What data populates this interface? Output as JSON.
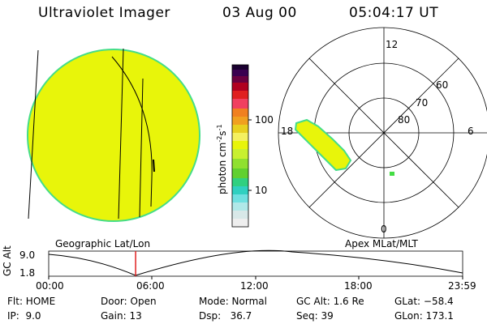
{
  "header": {
    "instrument": "Ultraviolet Imager",
    "date": "03 Aug 00",
    "time": "05:04:17 UT"
  },
  "colorbar": {
    "label": "photon cm",
    "label_sup1": "-2",
    "label_s": "s",
    "label_sup2": "-1",
    "ticks": [
      "100",
      "10"
    ]
  },
  "polar_plot": {
    "title": "Apex MLat/MLT",
    "mlt_labels": [
      "12",
      "18",
      "6",
      "0"
    ],
    "mlat_labels": [
      "60",
      "70",
      "80"
    ]
  },
  "geo_plot": {
    "title": "Geographic Lat/Lon"
  },
  "altitude_plot": {
    "ylabel": "GC Alt",
    "y_ticks": [
      "9.0",
      "1.8"
    ],
    "x_ticks": [
      "00:00",
      "06:00",
      "12:00",
      "18:00",
      "23:59"
    ],
    "current_time_fraction": 0.21
  },
  "status": {
    "flt": "Flt: HOME",
    "ip": "IP:  9.0",
    "door": "Door: Open",
    "gain": "Gain: 13",
    "mode": "Mode: Normal",
    "dsp": "Dsp:   36.7",
    "gc_alt": "GC Alt: 1.6 Re",
    "seq": "Seq: 39",
    "glat": "GLat: −58.4",
    "glon": "GLon: 173.1"
  },
  "colors": {
    "disk": "#e8f50a",
    "disk_edge": "#44dd88"
  }
}
